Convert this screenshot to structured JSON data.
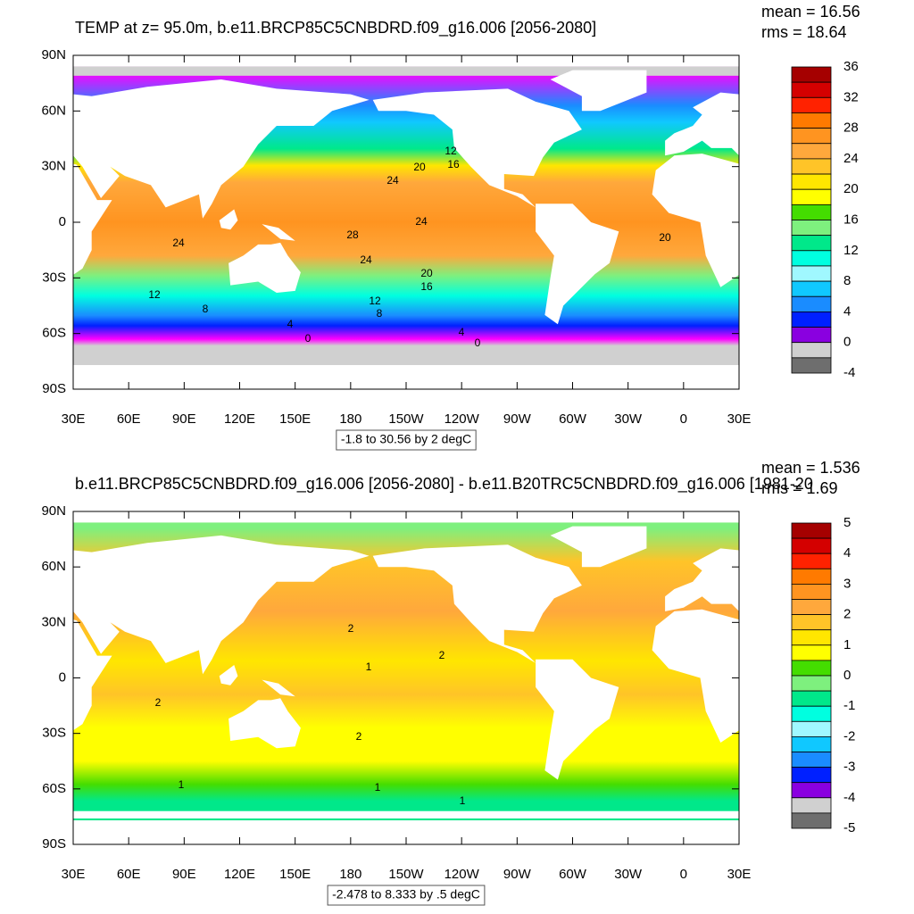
{
  "panels": [
    {
      "title": "TEMP at z=  95.0m, b.e11.BRCP85C5CNBDRD.f09_g16.006 [2056-2080]",
      "mean": "mean = 16.56",
      "rms": "rms = 18.64",
      "x_labels": [
        "30E",
        "60E",
        "90E",
        "120E",
        "150E",
        "180",
        "150W",
        "120W",
        "90W",
        "60W",
        "30W",
        "0",
        "30E"
      ],
      "y_labels": [
        "90N",
        "60N",
        "30N",
        "0",
        "30S",
        "60S",
        "90S"
      ],
      "colorbar": {
        "labels": [
          "36",
          "32",
          "28",
          "24",
          "20",
          "16",
          "12",
          "8",
          "4",
          "0",
          "-4"
        ],
        "colors": [
          "#a50000",
          "#d40000",
          "#ff2200",
          "#ff7a00",
          "#ff9420",
          "#ffa83c",
          "#ffc428",
          "#ffe600",
          "#ffff00",
          "#44dd00",
          "#7ef07e",
          "#00e88a",
          "#00ffe0",
          "#a0f8ff",
          "#10c8ff",
          "#1a8cff",
          "#0020ff",
          "#8a00e0",
          "#ff00ff",
          "#d0d0d0",
          "#6e6e6e"
        ]
      },
      "contour_labels": [
        "12",
        "16",
        "20",
        "24",
        "24",
        "28",
        "24",
        "24",
        "20",
        "16",
        "12",
        "12",
        "8",
        "8",
        "4",
        "0",
        "4",
        "0",
        "20"
      ],
      "range": "-1.8 to 30.56 by 2 degC"
    },
    {
      "title": "b.e11.BRCP85C5CNBDRD.f09_g16.006 [2056-2080] - b.e11.B20TRC5CNBDRD.f09_g16.006 [1981-20",
      "mean": "mean = 1.536",
      "rms": "rms = 1.69",
      "x_labels": [
        "30E",
        "60E",
        "90E",
        "120E",
        "150E",
        "180",
        "150W",
        "120W",
        "90W",
        "60W",
        "30W",
        "0",
        "30E"
      ],
      "y_labels": [
        "90N",
        "60N",
        "30N",
        "0",
        "30S",
        "60S",
        "90S"
      ],
      "colorbar": {
        "labels": [
          "5",
          "4",
          "3",
          "2",
          "1",
          "0",
          "-1",
          "-2",
          "-3",
          "-4",
          "-5"
        ],
        "colors": [
          "#a50000",
          "#d40000",
          "#ff2200",
          "#ff7a00",
          "#ff9420",
          "#ffa83c",
          "#ffc428",
          "#ffe600",
          "#ffff00",
          "#44dd00",
          "#7ef07e",
          "#00e88a",
          "#00ffe0",
          "#a0f8ff",
          "#10c8ff",
          "#1a8cff",
          "#0020ff",
          "#8a00e0",
          "#ff00ff",
          "#d0d0d0",
          "#6e6e6e"
        ]
      },
      "contour_labels": [
        "2",
        "2",
        "1",
        "2",
        "2",
        "1",
        "1",
        "1"
      ],
      "range": "-2.478 to 8.333 by .5 degC"
    }
  ]
}
